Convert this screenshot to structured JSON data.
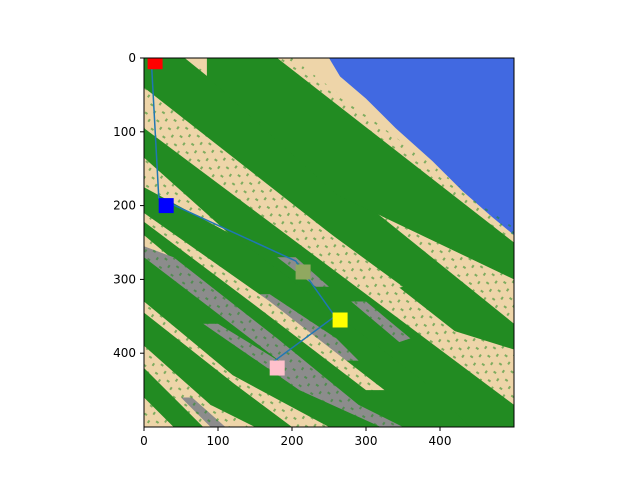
{
  "chart_data": {
    "type": "heatmap",
    "title": "",
    "xlabel": "",
    "ylabel": "",
    "xlim": [
      0,
      500
    ],
    "ylim": [
      500,
      0
    ],
    "x_ticks": [
      "0",
      "100",
      "200",
      "300",
      "400"
    ],
    "y_ticks": [
      "0",
      "100",
      "200",
      "300",
      "400"
    ],
    "x_tick_values": [
      0,
      100,
      200,
      300,
      400
    ],
    "y_tick_values": [
      0,
      100,
      200,
      300,
      400
    ],
    "terrain_colors": {
      "sand": "#EED5A9",
      "forest": "#228B22",
      "rock": "#8C8C8C",
      "water": "#4169E1"
    },
    "path": {
      "color": "#1F77B4",
      "points": [
        [
          10,
          5
        ],
        [
          20,
          190
        ],
        [
          205,
          275
        ],
        [
          258,
          350
        ],
        [
          170,
          415
        ]
      ]
    },
    "markers": [
      {
        "color": "#FF0000",
        "x": 15,
        "y": 5
      },
      {
        "color": "#0000FF",
        "x": 30,
        "y": 200
      },
      {
        "color": "#90A860",
        "x": 215,
        "y": 290
      },
      {
        "color": "#FFFF00",
        "x": 265,
        "y": 355
      },
      {
        "color": "#FFC0CB",
        "x": 180,
        "y": 420
      }
    ]
  }
}
